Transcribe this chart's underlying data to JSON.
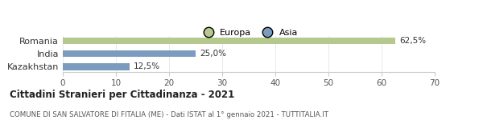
{
  "categories": [
    "Romania",
    "India",
    "Kazakhstan"
  ],
  "values": [
    62.5,
    25.0,
    12.5
  ],
  "colors": [
    "#b5c98e",
    "#7b9bbf",
    "#7b9bbf"
  ],
  "legend_labels": [
    "Europa",
    "Asia"
  ],
  "legend_colors": [
    "#b5c98e",
    "#7b9bbf"
  ],
  "bar_labels": [
    "62,5%",
    "25,0%",
    "12,5%"
  ],
  "xlim": [
    0,
    70
  ],
  "xticks": [
    0,
    10,
    20,
    30,
    40,
    50,
    60,
    70
  ],
  "title": "Cittadini Stranieri per Cittadinanza - 2021",
  "subtitle": "COMUNE DI SAN SALVATORE DI FITALIA (ME) - Dati ISTAT al 1° gennaio 2021 - TUTTITALIA.IT",
  "background_color": "#ffffff"
}
